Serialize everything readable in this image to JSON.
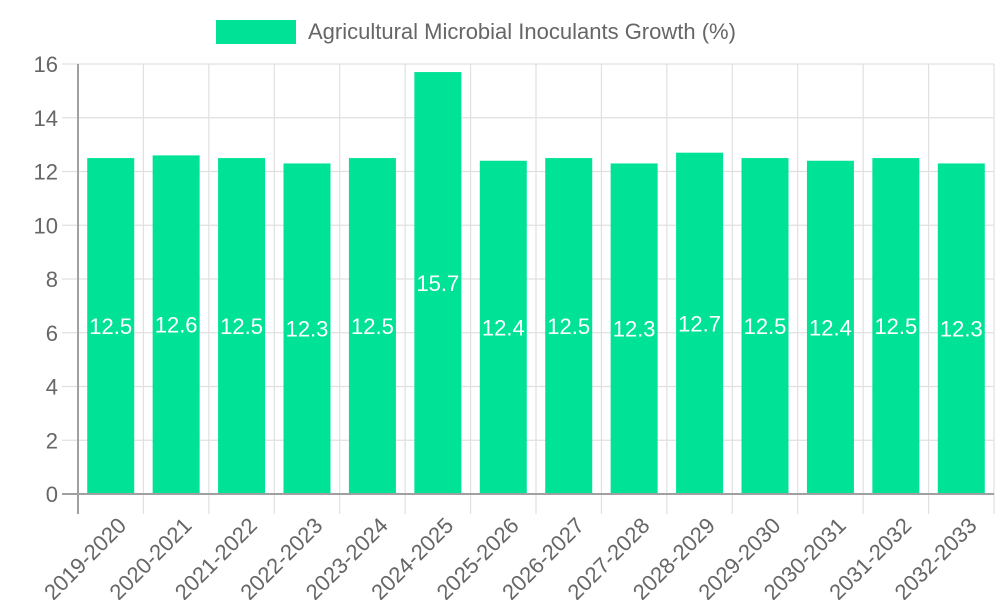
{
  "chart_data": {
    "type": "bar",
    "title": "",
    "legend": {
      "position": "top",
      "entries": [
        {
          "label": "Agricultural Microbial Inoculants Growth (%)",
          "color": "#00e396"
        }
      ]
    },
    "categories": [
      "2019-2020",
      "2020-2021",
      "2021-2022",
      "2022-2023",
      "2023-2024",
      "2024-2025",
      "2025-2026",
      "2026-2027",
      "2027-2028",
      "2028-2029",
      "2029-2030",
      "2030-2031",
      "2031-2032",
      "2032-2033"
    ],
    "series": [
      {
        "name": "Agricultural Microbial Inoculants Growth (%)",
        "color": "#00e396",
        "values": [
          12.5,
          12.6,
          12.5,
          12.3,
          12.5,
          15.7,
          12.4,
          12.5,
          12.3,
          12.7,
          12.5,
          12.4,
          12.5,
          12.3
        ]
      }
    ],
    "xlabel": "",
    "ylabel": "",
    "ylim": [
      0,
      16
    ],
    "yticks": [
      0,
      2,
      4,
      6,
      8,
      10,
      12,
      14,
      16
    ],
    "grid": true,
    "data_labels": true,
    "x_tick_rotation": -45
  },
  "colors": {
    "bar": "#00e396",
    "grid": "#e0e0e0",
    "axis": "#a0a0a0",
    "tick_text": "#666666",
    "data_label": "#ffffff"
  }
}
